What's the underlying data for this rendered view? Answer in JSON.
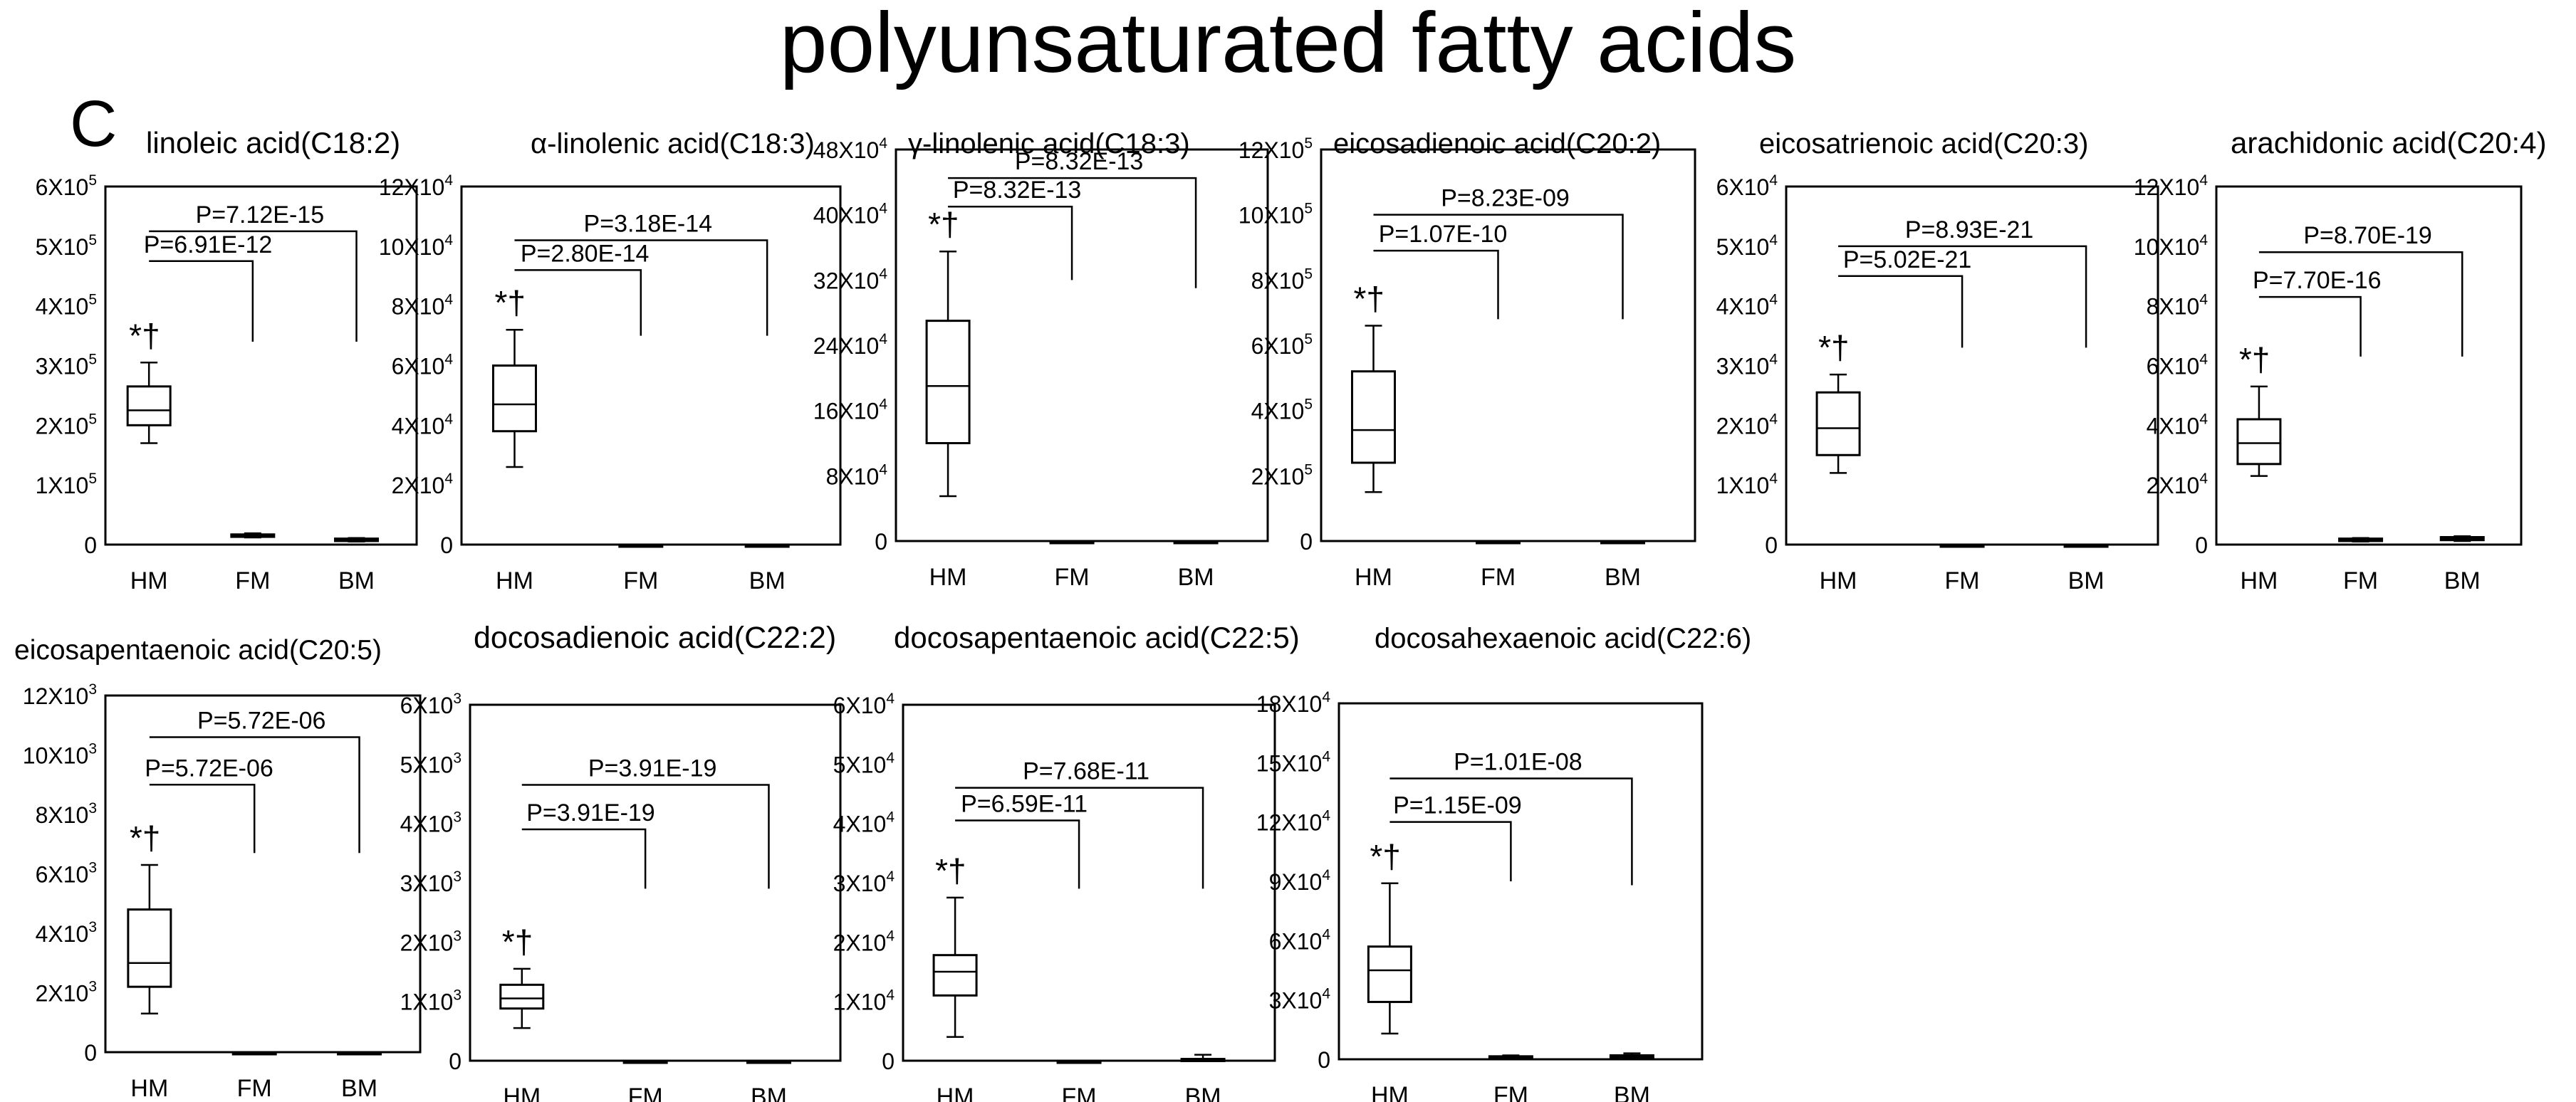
{
  "figure": {
    "title": "polyunsaturated fatty acids",
    "panel_letter": "C"
  },
  "chart_data": [
    {
      "type": "box",
      "title": "linoleic acid(C18:2)",
      "categories": [
        "HM",
        "FM",
        "BM"
      ],
      "y_unit": "X10",
      "y_exponent": "5",
      "ylim": [
        0,
        6
      ],
      "y_ticks": [
        0,
        1,
        2,
        3,
        4,
        5,
        6
      ],
      "boxes": [
        {
          "category": "HM",
          "min": 1.7,
          "q1": 2.0,
          "median": 2.25,
          "q3": 2.65,
          "max": 3.05
        },
        {
          "category": "FM",
          "min": 0.12,
          "q1": 0.13,
          "median": 0.15,
          "q3": 0.17,
          "max": 0.19
        },
        {
          "category": "BM",
          "min": 0.05,
          "q1": 0.06,
          "median": 0.08,
          "q3": 0.1,
          "max": 0.11
        }
      ],
      "significance_mark": "*†",
      "comparisons": [
        {
          "label": "P=6.91E-12",
          "from": "HM",
          "to": "FM",
          "level": 4.75,
          "drop_to": 3.4
        },
        {
          "label": "P=7.12E-15",
          "from": "HM",
          "to": "BM",
          "level": 5.25,
          "drop_to": 3.4
        }
      ]
    },
    {
      "type": "box",
      "title": "α-linolenic acid(C18:3)",
      "categories": [
        "HM",
        "FM",
        "BM"
      ],
      "y_unit": "X10",
      "y_exponent": "4",
      "ylim": [
        0,
        12
      ],
      "y_ticks": [
        0,
        2,
        4,
        6,
        8,
        10,
        12
      ],
      "boxes": [
        {
          "category": "HM",
          "min": 2.6,
          "q1": 3.8,
          "median": 4.7,
          "q3": 6.0,
          "max": 7.2
        },
        {
          "category": "FM",
          "min": 0,
          "q1": 0,
          "median": 0,
          "q3": 0,
          "max": 0
        },
        {
          "category": "BM",
          "min": 0,
          "q1": 0,
          "median": 0,
          "q3": 0,
          "max": 0
        }
      ],
      "significance_mark": "*†",
      "comparisons": [
        {
          "label": "P=2.80E-14",
          "from": "HM",
          "to": "FM",
          "level": 9.2,
          "drop_to": 7.0
        },
        {
          "label": "P=3.18E-14",
          "from": "HM",
          "to": "BM",
          "level": 10.2,
          "drop_to": 7.0
        }
      ]
    },
    {
      "type": "box",
      "title": "γ-linolenic acid(C18:3)",
      "categories": [
        "HM",
        "FM",
        "BM"
      ],
      "y_unit": "X10",
      "y_exponent": "4",
      "ylim": [
        0,
        48
      ],
      "y_ticks": [
        0,
        8,
        16,
        24,
        32,
        40,
        48
      ],
      "boxes": [
        {
          "category": "HM",
          "min": 5.5,
          "q1": 12.0,
          "median": 19.0,
          "q3": 27.0,
          "max": 35.5
        },
        {
          "category": "FM",
          "min": 0,
          "q1": 0,
          "median": 0,
          "q3": 0,
          "max": 0
        },
        {
          "category": "BM",
          "min": 0,
          "q1": 0,
          "median": 0,
          "q3": 0,
          "max": 0
        }
      ],
      "significance_mark": "*†",
      "comparisons": [
        {
          "label": "P=8.32E-13",
          "from": "HM",
          "to": "FM",
          "level": 41.0,
          "drop_to": 32.0
        },
        {
          "label": "P=8.32E-13",
          "from": "HM",
          "to": "BM",
          "level": 44.5,
          "drop_to": 31.0
        }
      ]
    },
    {
      "type": "box",
      "title": "eicosadienoic acid(C20:2)",
      "categories": [
        "HM",
        "FM",
        "BM"
      ],
      "y_unit": "X10",
      "y_exponent": "5",
      "ylim": [
        0,
        12
      ],
      "y_ticks": [
        0,
        2,
        4,
        6,
        8,
        10,
        12
      ],
      "boxes": [
        {
          "category": "HM",
          "min": 1.5,
          "q1": 2.4,
          "median": 3.4,
          "q3": 5.2,
          "max": 6.6
        },
        {
          "category": "FM",
          "min": 0,
          "q1": 0,
          "median": 0,
          "q3": 0,
          "max": 0
        },
        {
          "category": "BM",
          "min": 0,
          "q1": 0,
          "median": 0,
          "q3": 0,
          "max": 0
        }
      ],
      "significance_mark": "*†",
      "comparisons": [
        {
          "label": "P=1.07E-10",
          "from": "HM",
          "to": "FM",
          "level": 8.9,
          "drop_to": 6.8
        },
        {
          "label": "P=8.23E-09",
          "from": "HM",
          "to": "BM",
          "level": 10.0,
          "drop_to": 6.8
        }
      ]
    },
    {
      "type": "box",
      "title": "eicosatrienoic acid(C20:3)",
      "categories": [
        "HM",
        "FM",
        "BM"
      ],
      "y_unit": "X10",
      "y_exponent": "4",
      "ylim": [
        0,
        6
      ],
      "y_ticks": [
        0,
        1,
        2,
        3,
        4,
        5,
        6
      ],
      "boxes": [
        {
          "category": "HM",
          "min": 1.2,
          "q1": 1.5,
          "median": 1.95,
          "q3": 2.55,
          "max": 2.85
        },
        {
          "category": "FM",
          "min": 0,
          "q1": 0,
          "median": 0,
          "q3": 0,
          "max": 0
        },
        {
          "category": "BM",
          "min": 0,
          "q1": 0,
          "median": 0,
          "q3": 0,
          "max": 0
        }
      ],
      "significance_mark": "*†",
      "comparisons": [
        {
          "label": "P=5.02E-21",
          "from": "HM",
          "to": "FM",
          "level": 4.5,
          "drop_to": 3.3
        },
        {
          "label": "P=8.93E-21",
          "from": "HM",
          "to": "BM",
          "level": 5.0,
          "drop_to": 3.3
        }
      ]
    },
    {
      "type": "box",
      "title": "arachidonic acid(C20:4)",
      "categories": [
        "HM",
        "FM",
        "BM"
      ],
      "y_unit": "X10",
      "y_exponent": "4",
      "ylim": [
        0,
        12
      ],
      "y_ticks": [
        0,
        2,
        4,
        6,
        8,
        10,
        12
      ],
      "boxes": [
        {
          "category": "HM",
          "min": 2.3,
          "q1": 2.7,
          "median": 3.4,
          "q3": 4.2,
          "max": 5.3
        },
        {
          "category": "FM",
          "min": 0.1,
          "q1": 0.12,
          "median": 0.15,
          "q3": 0.2,
          "max": 0.22
        },
        {
          "category": "BM",
          "min": 0.12,
          "q1": 0.15,
          "median": 0.2,
          "q3": 0.25,
          "max": 0.28
        }
      ],
      "significance_mark": "*†",
      "comparisons": [
        {
          "label": "P=7.70E-16",
          "from": "HM",
          "to": "FM",
          "level": 8.3,
          "drop_to": 6.3
        },
        {
          "label": "P=8.70E-19",
          "from": "HM",
          "to": "BM",
          "level": 9.8,
          "drop_to": 6.3
        }
      ]
    },
    {
      "type": "box",
      "title": "eicosapentaenoic acid(C20:5)",
      "categories": [
        "HM",
        "FM",
        "BM"
      ],
      "y_unit": "X10",
      "y_exponent": "3",
      "ylim": [
        0,
        12
      ],
      "y_ticks": [
        0,
        2,
        4,
        6,
        8,
        10,
        12
      ],
      "boxes": [
        {
          "category": "HM",
          "min": 1.3,
          "q1": 2.2,
          "median": 3.0,
          "q3": 4.8,
          "max": 6.3
        },
        {
          "category": "FM",
          "min": 0,
          "q1": 0,
          "median": 0,
          "q3": 0,
          "max": 0
        },
        {
          "category": "BM",
          "min": 0,
          "q1": 0,
          "median": 0,
          "q3": 0,
          "max": 0
        }
      ],
      "significance_mark": "*†",
      "comparisons": [
        {
          "label": "P=5.72E-06",
          "from": "HM",
          "to": "FM",
          "level": 9.0,
          "drop_to": 6.7
        },
        {
          "label": "P=5.72E-06",
          "from": "HM",
          "to": "BM",
          "level": 10.6,
          "drop_to": 6.7
        }
      ]
    },
    {
      "type": "box",
      "title": "docosadienoic acid(C22:2)",
      "categories": [
        "HM",
        "FM",
        "BM"
      ],
      "y_unit": "X10",
      "y_exponent": "3",
      "ylim": [
        0,
        6
      ],
      "y_ticks": [
        0,
        1,
        2,
        3,
        4,
        5,
        6
      ],
      "boxes": [
        {
          "category": "HM",
          "min": 0.55,
          "q1": 0.88,
          "median": 1.05,
          "q3": 1.28,
          "max": 1.55
        },
        {
          "category": "FM",
          "min": 0,
          "q1": 0,
          "median": 0,
          "q3": 0,
          "max": 0
        },
        {
          "category": "BM",
          "min": 0,
          "q1": 0,
          "median": 0,
          "q3": 0,
          "max": 0
        }
      ],
      "significance_mark": "*†",
      "comparisons": [
        {
          "label": "P=3.91E-19",
          "from": "HM",
          "to": "FM",
          "level": 3.9,
          "drop_to": 2.9
        },
        {
          "label": "P=3.91E-19",
          "from": "HM",
          "to": "BM",
          "level": 4.65,
          "drop_to": 2.9
        }
      ]
    },
    {
      "type": "box",
      "title": "docosapentaenoic acid(C22:5)",
      "categories": [
        "HM",
        "FM",
        "BM"
      ],
      "y_unit": "X10",
      "y_exponent": "4",
      "ylim": [
        0,
        6
      ],
      "y_ticks": [
        0,
        1,
        2,
        3,
        4,
        5,
        6
      ],
      "boxes": [
        {
          "category": "HM",
          "min": 0.4,
          "q1": 1.1,
          "median": 1.5,
          "q3": 1.78,
          "max": 2.75
        },
        {
          "category": "FM",
          "min": 0,
          "q1": 0,
          "median": 0,
          "q3": 0,
          "max": 0
        },
        {
          "category": "BM",
          "min": 0,
          "q1": 0.01,
          "median": 0.02,
          "q3": 0.03,
          "max": 0.1
        }
      ],
      "significance_mark": "*†",
      "comparisons": [
        {
          "label": "P=6.59E-11",
          "from": "HM",
          "to": "FM",
          "level": 4.05,
          "drop_to": 2.9
        },
        {
          "label": "P=7.68E-11",
          "from": "HM",
          "to": "BM",
          "level": 4.6,
          "drop_to": 2.9
        }
      ]
    },
    {
      "type": "box",
      "title": "docosahexaenoic acid(C22:6)",
      "categories": [
        "HM",
        "FM",
        "BM"
      ],
      "y_unit": "X10",
      "y_exponent": "4",
      "ylim": [
        0,
        18
      ],
      "y_ticks": [
        0,
        3,
        6,
        9,
        12,
        15,
        18
      ],
      "boxes": [
        {
          "category": "HM",
          "min": 1.3,
          "q1": 2.9,
          "median": 4.5,
          "q3": 5.7,
          "max": 8.9
        },
        {
          "category": "FM",
          "min": 0,
          "q1": 0.05,
          "median": 0.1,
          "q3": 0.15,
          "max": 0.2
        },
        {
          "category": "BM",
          "min": 0,
          "q1": 0.1,
          "median": 0.15,
          "q3": 0.2,
          "max": 0.3
        }
      ],
      "significance_mark": "*†",
      "comparisons": [
        {
          "label": "P=1.15E-09",
          "from": "HM",
          "to": "FM",
          "level": 12.0,
          "drop_to": 9.0
        },
        {
          "label": "P=1.01E-08",
          "from": "HM",
          "to": "BM",
          "level": 14.2,
          "drop_to": 8.8
        }
      ]
    }
  ]
}
